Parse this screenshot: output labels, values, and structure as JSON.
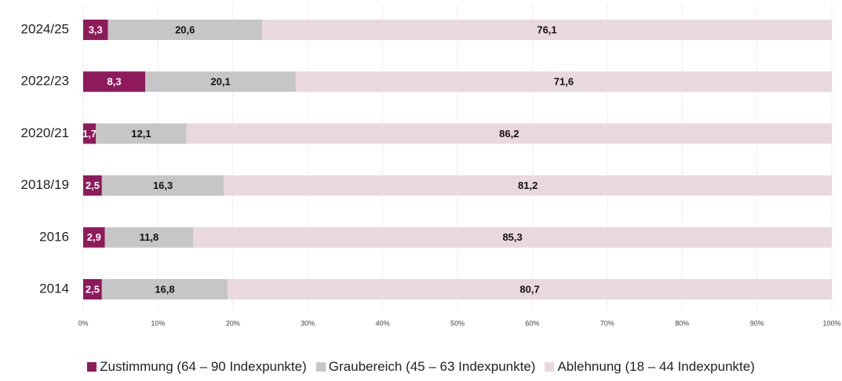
{
  "chart_data": {
    "type": "stacked-bar-horizontal",
    "categories": [
      "2024/25",
      "2022/23",
      "2020/21",
      "2018/19",
      "2016",
      "2014"
    ],
    "series": [
      {
        "name": "Zustimmung (64 – 90 Indexpunkte)",
        "color": "#8e1a5c",
        "values": [
          3.3,
          8.3,
          1.7,
          2.5,
          2.9,
          2.5
        ],
        "value_labels": [
          "3,3",
          "8,3",
          "1,7",
          "2,5",
          "2,9",
          "2,5"
        ]
      },
      {
        "name": "Graubereich (45 – 63 Indexpunkte)",
        "color": "#c6c6c6",
        "values": [
          20.6,
          20.1,
          12.1,
          16.3,
          11.8,
          16.8
        ],
        "value_labels": [
          "20,6",
          "20,1",
          "12,1",
          "16,3",
          "11,8",
          "16,8"
        ]
      },
      {
        "name": "Ablehnung (18 – 44 Indexpunkte)",
        "color": "#e9d9dd",
        "values": [
          76.1,
          71.6,
          86.2,
          81.2,
          85.3,
          80.7
        ],
        "value_labels": [
          "76,1",
          "71,6",
          "86,2",
          "81,2",
          "85,3",
          "80,7"
        ]
      }
    ],
    "xlim": [
      0,
      100
    ],
    "xticks": [
      {
        "value": 0,
        "label": "0%"
      },
      {
        "value": 10,
        "label": "10%"
      },
      {
        "value": 20,
        "label": "20%"
      },
      {
        "value": 30,
        "label": "30%"
      },
      {
        "value": 40,
        "label": "40%"
      },
      {
        "value": 50,
        "label": "50%"
      },
      {
        "value": 60,
        "label": "60%"
      },
      {
        "value": 70,
        "label": "70%"
      },
      {
        "value": 80,
        "label": "80%"
      },
      {
        "value": 90,
        "label": "90%"
      },
      {
        "value": 100,
        "label": "100%"
      }
    ],
    "grid": true
  }
}
